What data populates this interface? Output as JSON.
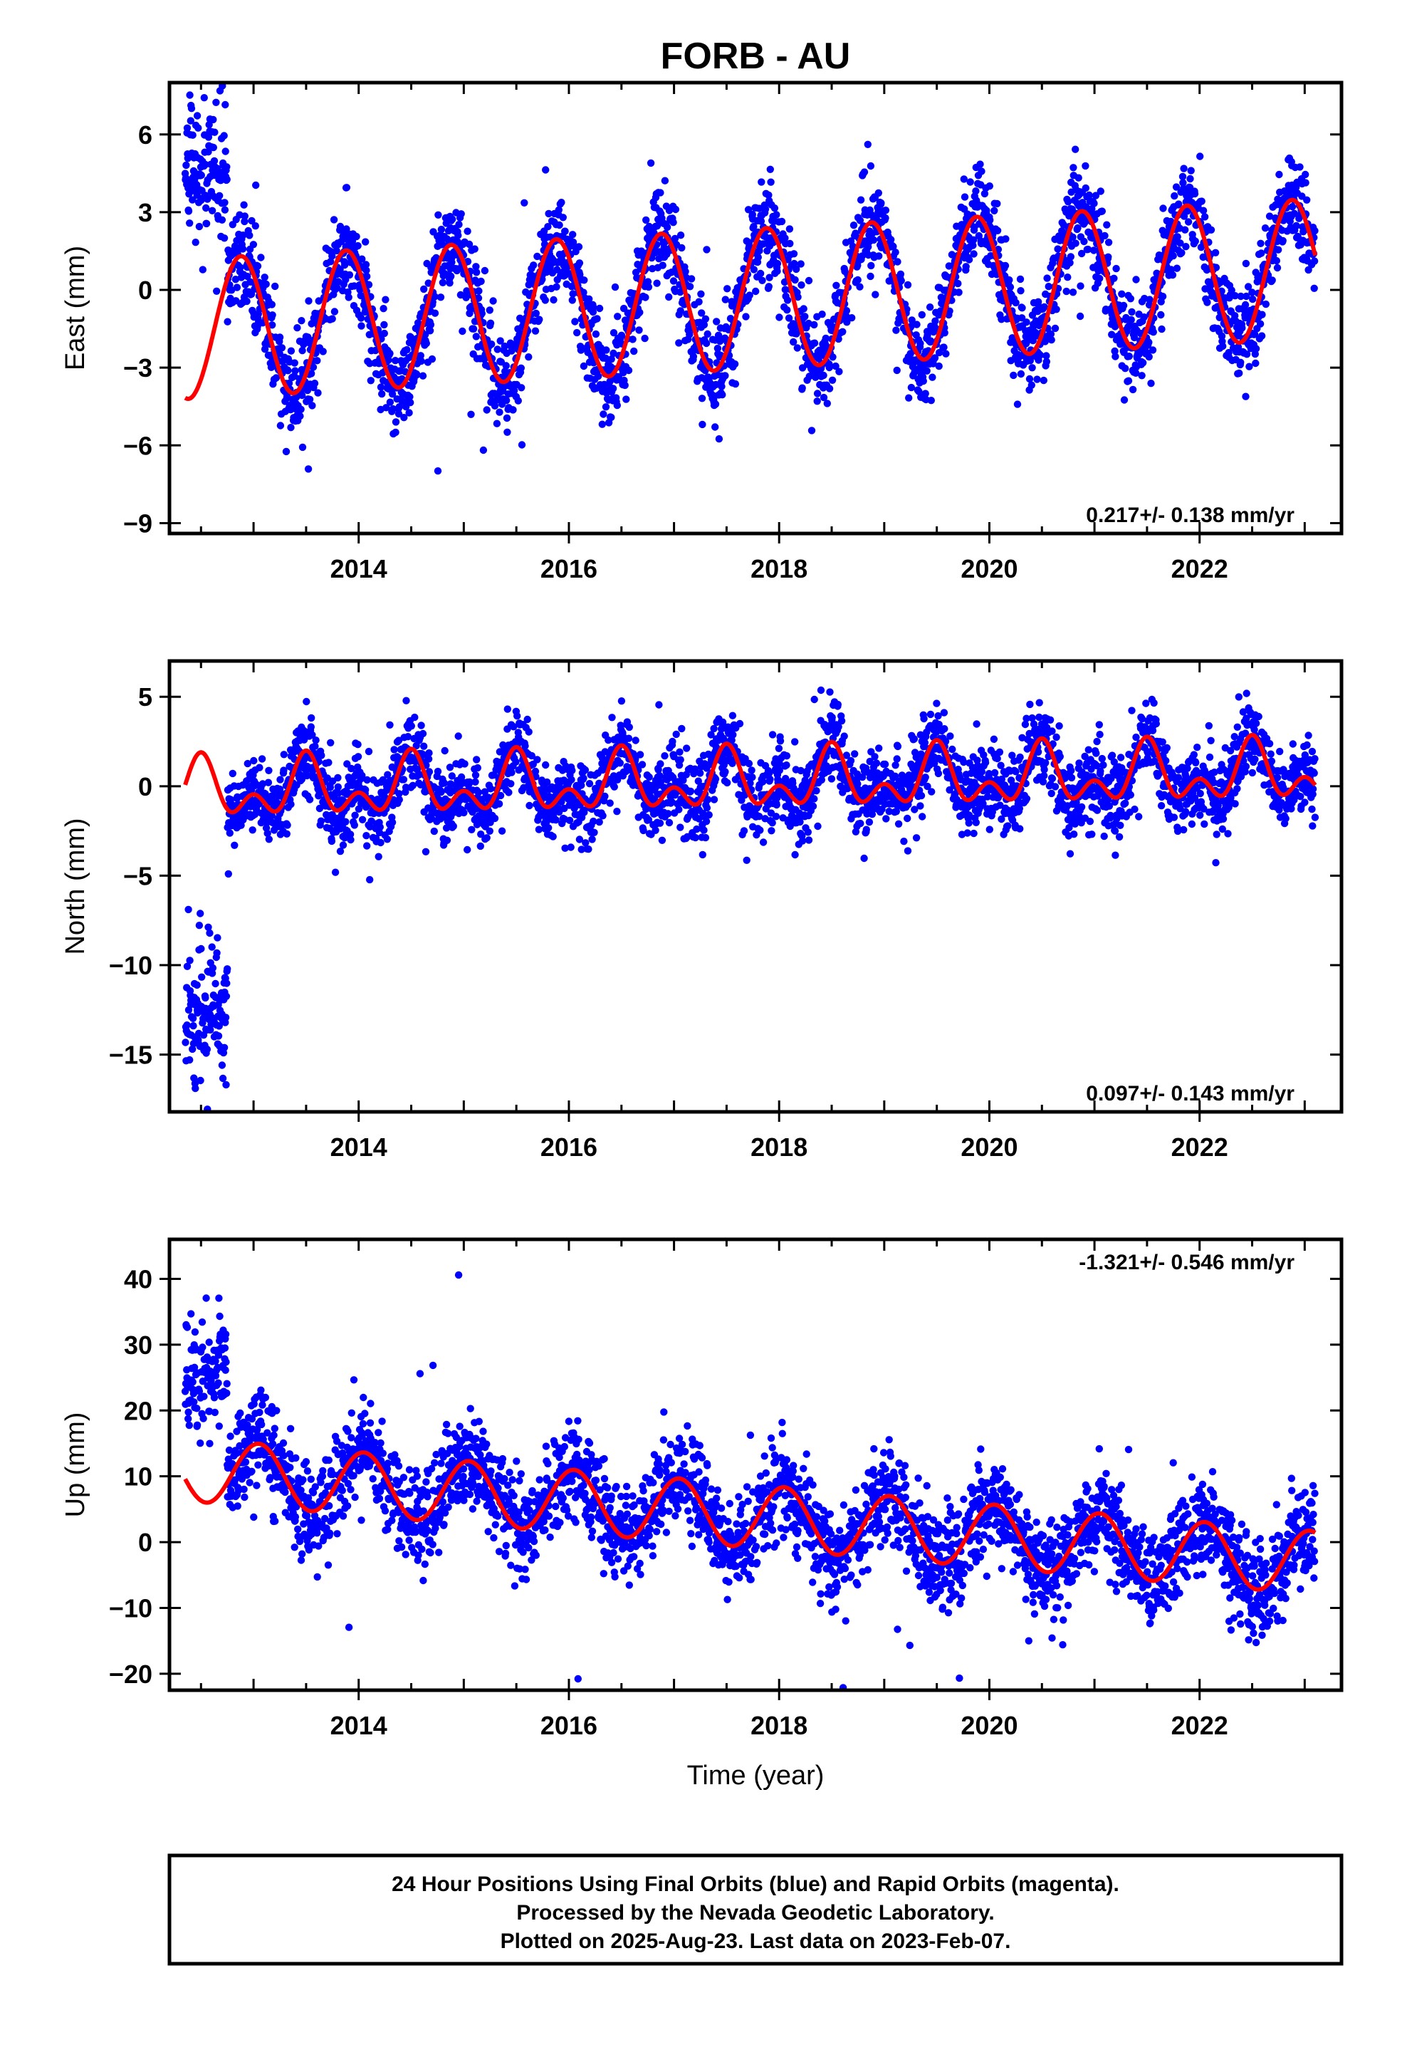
{
  "title": "FORB - AU",
  "colors": {
    "points": "#0000ff",
    "fit": "#ff0000",
    "frame": "#000000"
  },
  "footer": {
    "line1": "24 Hour Positions Using Final Orbits (blue) and Rapid Orbits (magenta).",
    "line2": "Processed by the Nevada Geodetic Laboratory.",
    "line3": "Plotted on 2025-Aug-23. Last data on 2023-Feb-07."
  },
  "chart_data": [
    {
      "type": "scatter",
      "ylabel": "East (mm)",
      "xlabel": "",
      "xlim": [
        2012.2,
        2023.35
      ],
      "ylim": [
        -9.4,
        8
      ],
      "xticks": [
        2014,
        2016,
        2018,
        2020,
        2022
      ],
      "yticks": [
        6,
        3,
        0,
        -3,
        -6,
        -9
      ],
      "rate": "0.217+/- 0.138 mm/yr",
      "rate_position": "bottom-right",
      "fit": {
        "offset": -0.35,
        "trend": 0.217,
        "annual_amp": 2.7,
        "annual_peak": 0.88,
        "semiannual_amp": 0.0,
        "semiannual_peak": 0.0
      },
      "scatter": {
        "noise": 0.9,
        "early_end": 2012.75,
        "early_offset": 4.5,
        "early_noise": 1.3
      },
      "series": [
        {
          "label": "daily positions",
          "color": "#0000ff",
          "time_span": [
            2012.35,
            2023.1
          ]
        },
        {
          "label": "model fit",
          "color": "#ff0000"
        }
      ]
    },
    {
      "type": "scatter",
      "ylabel": "North (mm)",
      "xlabel": "",
      "xlim": [
        2012.2,
        2023.35
      ],
      "ylim": [
        -18.2,
        7
      ],
      "xticks": [
        2014,
        2016,
        2018,
        2020,
        2022
      ],
      "yticks": [
        5,
        0,
        -5,
        -10,
        -15
      ],
      "rate": "0.097+/- 0.143 mm/yr",
      "rate_position": "bottom-right",
      "fit": {
        "offset": 0.2,
        "trend": 0.097,
        "annual_amp": 1.2,
        "annual_peak": 0.5,
        "semiannual_amp": 1.0,
        "semiannual_peak": 0.5
      },
      "scatter": {
        "noise": 1.1,
        "early_end": 2012.75,
        "early_offset": -12.5,
        "early_noise": 2.2
      },
      "series": [
        {
          "label": "daily positions",
          "color": "#0000ff",
          "time_span": [
            2012.35,
            2023.1
          ]
        },
        {
          "label": "model fit",
          "color": "#ff0000"
        }
      ]
    },
    {
      "type": "scatter",
      "ylabel": "Up (mm)",
      "xlabel": "Time (year)",
      "xlim": [
        2012.2,
        2023.35
      ],
      "ylim": [
        -22.5,
        46
      ],
      "xticks": [
        2014,
        2016,
        2018,
        2020,
        2022
      ],
      "yticks": [
        40,
        30,
        20,
        10,
        0,
        -10,
        -20
      ],
      "rate": "-1.321+/- 0.546 mm/yr",
      "rate_position": "top-right",
      "fit": {
        "offset": 4.0,
        "trend": -1.321,
        "annual_amp": 4.8,
        "annual_peak": 0.05,
        "semiannual_amp": 0.0,
        "semiannual_peak": 0.0
      },
      "scatter": {
        "noise": 3.6,
        "early_end": 2012.75,
        "early_offset": 26.0,
        "early_noise": 5.0
      },
      "series": [
        {
          "label": "daily positions",
          "color": "#0000ff",
          "time_span": [
            2012.35,
            2023.1
          ]
        },
        {
          "label": "model fit",
          "color": "#ff0000"
        }
      ]
    }
  ]
}
